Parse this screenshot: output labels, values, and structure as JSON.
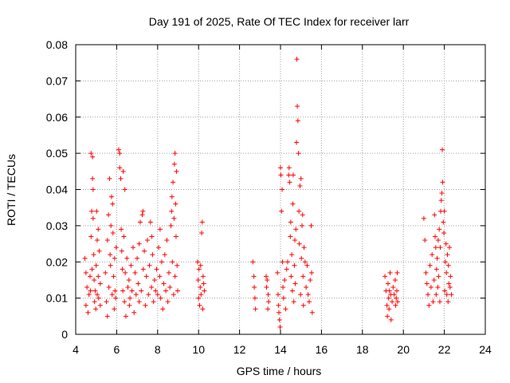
{
  "chart_data": {
    "type": "scatter",
    "title": "Day 191 of 2025, Rate Of TEC Index for receiver larr",
    "xlabel": "GPS time / hours",
    "ylabel": "ROTI / TECUs",
    "xlim": [
      4,
      24
    ],
    "ylim": [
      0,
      0.08
    ],
    "x_ticks": [
      4,
      6,
      8,
      10,
      12,
      14,
      16,
      18,
      20,
      22,
      24
    ],
    "x_tick_labels": [
      "4",
      "6",
      "8",
      "10",
      "12",
      "14",
      "16",
      "18",
      "20",
      "22",
      "24"
    ],
    "y_ticks": [
      0,
      0.01,
      0.02,
      0.03,
      0.04,
      0.05,
      0.06,
      0.07,
      0.08
    ],
    "y_tick_labels": [
      "0",
      "0.01",
      "0.02",
      "0.03",
      "0.04",
      "0.05",
      "0.06",
      "0.07",
      "0.08"
    ],
    "grid": true,
    "marker": "plus",
    "series": [
      {
        "name": "ROTI",
        "color": "#ff0000",
        "points": [
          [
            4.45,
            0.021
          ],
          [
            4.5,
            0.017
          ],
          [
            4.5,
            0.008
          ],
          [
            4.55,
            0.013
          ],
          [
            4.6,
            0.006
          ],
          [
            4.65,
            0.011
          ],
          [
            4.7,
            0.016
          ],
          [
            4.72,
            0.012
          ],
          [
            4.75,
            0.05
          ],
          [
            4.75,
            0.027
          ],
          [
            4.78,
            0.034
          ],
          [
            4.8,
            0.018
          ],
          [
            4.82,
            0.049
          ],
          [
            4.82,
            0.043
          ],
          [
            4.85,
            0.04
          ],
          [
            4.85,
            0.032
          ],
          [
            4.88,
            0.022
          ],
          [
            4.9,
            0.015
          ],
          [
            4.92,
            0.009
          ],
          [
            4.95,
            0.012
          ],
          [
            4.98,
            0.007
          ],
          [
            5.0,
            0.019
          ],
          [
            5.02,
            0.034
          ],
          [
            5.05,
            0.026
          ],
          [
            5.05,
            0.011
          ],
          [
            5.1,
            0.029
          ],
          [
            5.1,
            0.016
          ],
          [
            5.12,
            0.01
          ],
          [
            5.15,
            0.023
          ],
          [
            5.2,
            0.014
          ],
          [
            5.2,
            0.008
          ],
          [
            5.45,
            0.017
          ],
          [
            5.5,
            0.009
          ],
          [
            5.55,
            0.026
          ],
          [
            5.55,
            0.005
          ],
          [
            5.6,
            0.033
          ],
          [
            5.62,
            0.013
          ],
          [
            5.65,
            0.043
          ],
          [
            5.68,
            0.022
          ],
          [
            5.7,
            0.019
          ],
          [
            5.72,
            0.03
          ],
          [
            5.75,
            0.038
          ],
          [
            5.78,
            0.011
          ],
          [
            5.8,
            0.036
          ],
          [
            5.82,
            0.028
          ],
          [
            5.85,
            0.016
          ],
          [
            5.88,
            0.007
          ],
          [
            5.9,
            0.021
          ],
          [
            5.92,
            0.012
          ],
          [
            5.95,
            0.01
          ],
          [
            5.98,
            0.024
          ],
          [
            6.1,
            0.051
          ],
          [
            6.15,
            0.046
          ],
          [
            6.15,
            0.05
          ],
          [
            6.2,
            0.043
          ],
          [
            6.22,
            0.029
          ],
          [
            6.25,
            0.023
          ],
          [
            6.28,
            0.018
          ],
          [
            6.3,
            0.012
          ],
          [
            6.32,
            0.045
          ],
          [
            6.35,
            0.027
          ],
          [
            6.38,
            0.009
          ],
          [
            6.4,
            0.04
          ],
          [
            6.42,
            0.017
          ],
          [
            6.45,
            0.005
          ],
          [
            6.5,
            0.021
          ],
          [
            6.55,
            0.013
          ],
          [
            6.6,
            0.015
          ],
          [
            6.62,
            0.008
          ],
          [
            6.65,
            0.01
          ],
          [
            6.7,
            0.019
          ],
          [
            6.75,
            0.012
          ],
          [
            6.8,
            0.024
          ],
          [
            6.85,
            0.006
          ],
          [
            6.9,
            0.017
          ],
          [
            6.95,
            0.011
          ],
          [
            7.0,
            0.021
          ],
          [
            7.05,
            0.014
          ],
          [
            7.1,
            0.025
          ],
          [
            7.1,
            0.009
          ],
          [
            7.15,
            0.031
          ],
          [
            7.2,
            0.012
          ],
          [
            7.25,
            0.033
          ],
          [
            7.28,
            0.034
          ],
          [
            7.3,
            0.018
          ],
          [
            7.35,
            0.023
          ],
          [
            7.4,
            0.008
          ],
          [
            7.45,
            0.016
          ],
          [
            7.5,
            0.026
          ],
          [
            7.55,
            0.011
          ],
          [
            7.6,
            0.019
          ],
          [
            7.65,
            0.031
          ],
          [
            7.7,
            0.013
          ],
          [
            7.72,
            0.027
          ],
          [
            7.75,
            0.022
          ],
          [
            7.8,
            0.009
          ],
          [
            7.85,
            0.015
          ],
          [
            7.9,
            0.012
          ],
          [
            7.95,
            0.018
          ],
          [
            8.0,
            0.011
          ],
          [
            8.05,
            0.024
          ],
          [
            8.1,
            0.016
          ],
          [
            8.12,
            0.029
          ],
          [
            8.15,
            0.01
          ],
          [
            8.2,
            0.02
          ],
          [
            8.25,
            0.007
          ],
          [
            8.3,
            0.014
          ],
          [
            8.35,
            0.022
          ],
          [
            8.4,
            0.012
          ],
          [
            8.45,
            0.026
          ],
          [
            8.5,
            0.009
          ],
          [
            8.55,
            0.017
          ],
          [
            8.6,
            0.013
          ],
          [
            8.65,
            0.03
          ],
          [
            8.68,
            0.034
          ],
          [
            8.7,
            0.038
          ],
          [
            8.72,
            0.02
          ],
          [
            8.75,
            0.042
          ],
          [
            8.78,
            0.011
          ],
          [
            8.8,
            0.032
          ],
          [
            8.82,
            0.047
          ],
          [
            8.85,
            0.05
          ],
          [
            8.85,
            0.016
          ],
          [
            8.88,
            0.036
          ],
          [
            8.9,
            0.027
          ],
          [
            8.92,
            0.045
          ],
          [
            8.95,
            0.019
          ],
          [
            8.98,
            0.012
          ],
          [
            9.95,
            0.02
          ],
          [
            9.98,
            0.015
          ],
          [
            10.0,
            0.01
          ],
          [
            10.02,
            0.018
          ],
          [
            10.05,
            0.008
          ],
          [
            10.08,
            0.013
          ],
          [
            10.1,
            0.019
          ],
          [
            10.12,
            0.011
          ],
          [
            10.15,
            0.028
          ],
          [
            10.18,
            0.031
          ],
          [
            10.2,
            0.007
          ],
          [
            10.22,
            0.016
          ],
          [
            10.25,
            0.014
          ],
          [
            10.28,
            0.012
          ],
          [
            12.65,
            0.02
          ],
          [
            12.7,
            0.016
          ],
          [
            12.72,
            0.013
          ],
          [
            12.75,
            0.01
          ],
          [
            12.78,
            0.007
          ],
          [
            13.3,
            0.016
          ],
          [
            13.32,
            0.013
          ],
          [
            13.35,
            0.015
          ],
          [
            13.38,
            0.007
          ],
          [
            13.4,
            0.011
          ],
          [
            13.42,
            0.009
          ],
          [
            13.85,
            0.017
          ],
          [
            13.88,
            0.011
          ],
          [
            13.9,
            0.008
          ],
          [
            13.92,
            0.006
          ],
          [
            13.95,
            0.004
          ],
          [
            13.98,
            0.002
          ],
          [
            14.0,
            0.046
          ],
          [
            14.02,
            0.044
          ],
          [
            14.05,
            0.034
          ],
          [
            14.08,
            0.04
          ],
          [
            14.1,
            0.02
          ],
          [
            14.12,
            0.013
          ],
          [
            14.15,
            0.01
          ],
          [
            14.2,
            0.015
          ],
          [
            14.25,
            0.007
          ],
          [
            14.3,
            0.018
          ],
          [
            14.35,
            0.02
          ],
          [
            14.4,
            0.044
          ],
          [
            14.42,
            0.046
          ],
          [
            14.45,
            0.042
          ],
          [
            14.48,
            0.027
          ],
          [
            14.5,
            0.031
          ],
          [
            14.52,
            0.016
          ],
          [
            14.55,
            0.022
          ],
          [
            14.58,
            0.012
          ],
          [
            14.6,
            0.036
          ],
          [
            14.62,
            0.044
          ],
          [
            14.65,
            0.009
          ],
          [
            14.68,
            0.019
          ],
          [
            14.7,
            0.026
          ],
          [
            14.72,
            0.014
          ],
          [
            14.75,
            0.029
          ],
          [
            14.78,
            0.053
          ],
          [
            14.8,
            0.076
          ],
          [
            14.82,
            0.063
          ],
          [
            14.85,
            0.059
          ],
          [
            14.88,
            0.05
          ],
          [
            14.9,
            0.034
          ],
          [
            14.92,
            0.025
          ],
          [
            14.95,
            0.041
          ],
          [
            14.98,
            0.011
          ],
          [
            15.0,
            0.043
          ],
          [
            15.02,
            0.021
          ],
          [
            15.05,
            0.03
          ],
          [
            15.08,
            0.033
          ],
          [
            15.1,
            0.016
          ],
          [
            15.12,
            0.008
          ],
          [
            15.15,
            0.024
          ],
          [
            15.2,
            0.02
          ],
          [
            15.25,
            0.013
          ],
          [
            15.3,
            0.019
          ],
          [
            15.35,
            0.011
          ],
          [
            15.4,
            0.009
          ],
          [
            15.45,
            0.015
          ],
          [
            15.5,
            0.03
          ],
          [
            15.52,
            0.017
          ],
          [
            15.55,
            0.006
          ],
          [
            19.1,
            0.016
          ],
          [
            19.15,
            0.012
          ],
          [
            19.2,
            0.008
          ],
          [
            19.22,
            0.005
          ],
          [
            19.25,
            0.014
          ],
          [
            19.28,
            0.01
          ],
          [
            19.3,
            0.007
          ],
          [
            19.32,
            0.012
          ],
          [
            19.35,
            0.017
          ],
          [
            19.38,
            0.011
          ],
          [
            19.4,
            0.004
          ],
          [
            19.45,
            0.009
          ],
          [
            19.5,
            0.013
          ],
          [
            19.55,
            0.011
          ],
          [
            19.6,
            0.015
          ],
          [
            19.62,
            0.008
          ],
          [
            19.65,
            0.01
          ],
          [
            19.68,
            0.012
          ],
          [
            19.7,
            0.017
          ],
          [
            19.72,
            0.009
          ],
          [
            21.0,
            0.032
          ],
          [
            21.05,
            0.026
          ],
          [
            21.1,
            0.017
          ],
          [
            21.15,
            0.014
          ],
          [
            21.2,
            0.011
          ],
          [
            21.25,
            0.008
          ],
          [
            21.3,
            0.019
          ],
          [
            21.35,
            0.013
          ],
          [
            21.4,
            0.022
          ],
          [
            21.45,
            0.009
          ],
          [
            21.5,
            0.015
          ],
          [
            21.52,
            0.033
          ],
          [
            21.55,
            0.027
          ],
          [
            21.58,
            0.024
          ],
          [
            21.6,
            0.011
          ],
          [
            21.62,
            0.018
          ],
          [
            21.65,
            0.021
          ],
          [
            21.68,
            0.013
          ],
          [
            21.7,
            0.026
          ],
          [
            21.72,
            0.016
          ],
          [
            21.75,
            0.029
          ],
          [
            21.78,
            0.009
          ],
          [
            21.8,
            0.024
          ],
          [
            21.82,
            0.034
          ],
          [
            21.85,
            0.037
          ],
          [
            21.88,
            0.039
          ],
          [
            21.9,
            0.051
          ],
          [
            21.92,
            0.042
          ],
          [
            21.95,
            0.031
          ],
          [
            21.98,
            0.028
          ],
          [
            22.0,
            0.034
          ],
          [
            22.02,
            0.012
          ],
          [
            22.05,
            0.02
          ],
          [
            22.08,
            0.025
          ],
          [
            22.1,
            0.017
          ],
          [
            22.12,
            0.011
          ],
          [
            22.15,
            0.022
          ],
          [
            22.18,
            0.009
          ],
          [
            22.2,
            0.019
          ],
          [
            22.22,
            0.014
          ],
          [
            22.25,
            0.024
          ],
          [
            22.28,
            0.013
          ],
          [
            22.3,
            0.016
          ],
          [
            22.35,
            0.011
          ]
        ]
      }
    ]
  }
}
